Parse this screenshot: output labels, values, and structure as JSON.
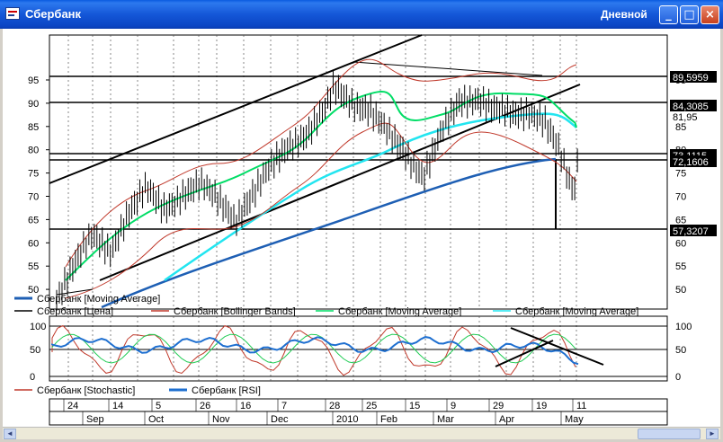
{
  "window": {
    "title": "Сбербанк",
    "period": "Дневной",
    "minimize_glyph": "_",
    "maximize_glyph": "□",
    "close_glyph": "×",
    "icon": "chart-window-icon"
  },
  "main_axis": {
    "ticks": [
      "95",
      "90",
      "85",
      "80",
      "75",
      "70",
      "65",
      "60",
      "55",
      "50"
    ],
    "right_ticks": [
      "95",
      "90",
      "85",
      "80",
      "75",
      "70",
      "65",
      "60",
      "55",
      "50"
    ],
    "price_labels": [
      {
        "text": "89,5959",
        "highlight": true
      },
      {
        "text": "84,3085",
        "highlight": true
      },
      {
        "text": "81,95",
        "highlight": false
      },
      {
        "text": "73,1115",
        "highlight": true
      },
      {
        "text": "72,1606",
        "highlight": true
      },
      {
        "text": "57,3207",
        "highlight": true
      }
    ]
  },
  "main_legend": [
    {
      "label": "Сбербанк [Moving Average]",
      "color": "#1e5fb4"
    },
    {
      "label": "Сбербанк [Цена]",
      "color": "#000000"
    },
    {
      "label": "Сбербанк [Bollinger Bands]",
      "color": "#c0392b"
    },
    {
      "label": "Сбербанк [Moving Average]",
      "color": "#00dd66"
    },
    {
      "label": "Сбербанк [Moving Average]",
      "color": "#22e5f0"
    }
  ],
  "osc_axis": {
    "ticks": [
      "100",
      "50",
      "0"
    ],
    "right_ticks": [
      "100",
      "50",
      "0"
    ]
  },
  "osc_legend": [
    {
      "label": "Сбербанк [Stochastic]",
      "color": "#c0392b"
    },
    {
      "label": "Сбербанк [RSI]",
      "color": "#1e6fd0"
    }
  ],
  "time_axis": {
    "days": [
      "24",
      "14",
      "5",
      "26",
      "16",
      "7",
      "28",
      "25",
      "15",
      "9",
      "29",
      "19",
      "11"
    ],
    "months": [
      "Sep",
      "Oct",
      "Nov",
      "Dec",
      "2010",
      "Feb",
      "Mar",
      "Apr",
      "May"
    ]
  },
  "chart_data": {
    "type": "line",
    "title": "Сбербанк",
    "period": "Дневной",
    "y_range": [
      47,
      98
    ],
    "series": [
      {
        "name": "Сбербанк [Цена]",
        "points": [
          [
            0,
            48
          ],
          [
            20,
            55
          ],
          [
            40,
            61
          ],
          [
            60,
            58
          ],
          [
            80,
            66
          ],
          [
            100,
            71
          ],
          [
            120,
            67
          ],
          [
            140,
            70
          ],
          [
            160,
            72
          ],
          [
            180,
            69
          ],
          [
            200,
            65
          ],
          [
            220,
            70
          ],
          [
            240,
            76
          ],
          [
            260,
            81
          ],
          [
            280,
            83
          ],
          [
            300,
            88
          ],
          [
            310,
            93
          ],
          [
            330,
            90
          ],
          [
            350,
            88
          ],
          [
            370,
            83
          ],
          [
            390,
            79
          ],
          [
            410,
            74
          ],
          [
            430,
            83
          ],
          [
            450,
            90
          ],
          [
            470,
            91
          ],
          [
            490,
            88
          ],
          [
            510,
            87
          ],
          [
            530,
            88
          ],
          [
            545,
            86
          ],
          [
            560,
            80
          ],
          [
            570,
            74
          ],
          [
            578,
            70
          ],
          [
            583,
            78
          ]
        ]
      },
      {
        "name": "Сбербанк [Moving Average]",
        "points": [
          [
            110,
            47
          ],
          [
            200,
            53
          ],
          [
            300,
            59
          ],
          [
            400,
            65
          ],
          [
            500,
            70
          ],
          [
            560,
            72.5
          ]
        ]
      }
    ],
    "horizontal_levels": [
      89.5959,
      84.3085,
      73.1115,
      72.1606,
      57.3207
    ],
    "oscillators": [
      {
        "name": "Сбербанк [Stochastic]",
        "range": [
          0,
          100
        ]
      },
      {
        "name": "Сбербанк [RSI]",
        "range": [
          0,
          100
        ]
      }
    ],
    "x_tick_labels": [
      "24",
      "14",
      "5",
      "26",
      "16",
      "7",
      "28",
      "25",
      "15",
      "9",
      "29",
      "19",
      "11"
    ],
    "x_month_labels": [
      "Sep",
      "Oct",
      "Nov",
      "Dec",
      "2010",
      "Feb",
      "Mar",
      "Apr",
      "May"
    ],
    "grid": true
  },
  "scrollbar": {
    "left_glyph": "◄",
    "right_glyph": "►"
  }
}
